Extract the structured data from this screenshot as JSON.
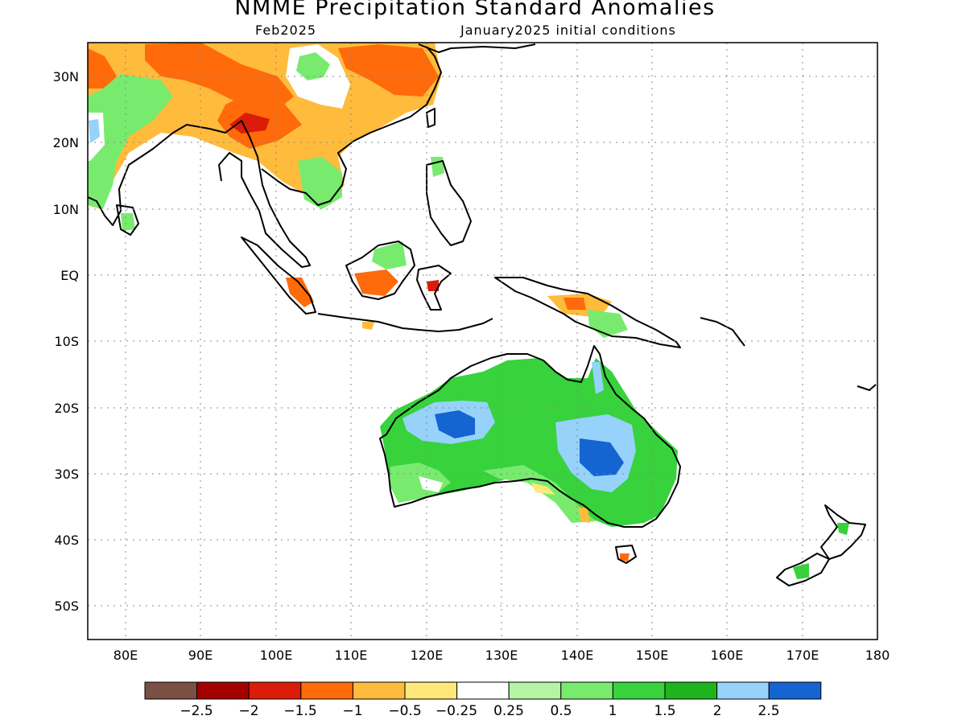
{
  "title": "NMME Precipitation Standard Anomalies",
  "subtitle_left": "Feb2025",
  "subtitle_right": "January2025 initial conditions",
  "map": {
    "lon_range": [
      75,
      180
    ],
    "lat_range": [
      -55,
      35
    ],
    "gridlines": "dotted",
    "lat_labels": [
      "30N",
      "20N",
      "10N",
      "EQ",
      "10S",
      "20S",
      "30S",
      "40S",
      "50S"
    ],
    "lon_labels": [
      "80E",
      "90E",
      "100E",
      "110E",
      "120E",
      "130E",
      "140E",
      "150E",
      "160E",
      "170E",
      "180"
    ]
  },
  "colorbar": {
    "colors": [
      "#7a5044",
      "#a30000",
      "#dc1c0a",
      "#ff6a0a",
      "#ffbb3c",
      "#ffe87a",
      "#ffffff",
      "#b4f5a5",
      "#78eb6e",
      "#37d23c",
      "#1eb41e",
      "#96d2fa",
      "#1464d2"
    ],
    "labels": [
      "−2.5",
      "−2",
      "−1.5",
      "−1",
      "−0.5",
      "−0.25",
      "0.25",
      "0.5",
      "1",
      "1.5",
      "2",
      "2.5"
    ]
  }
}
